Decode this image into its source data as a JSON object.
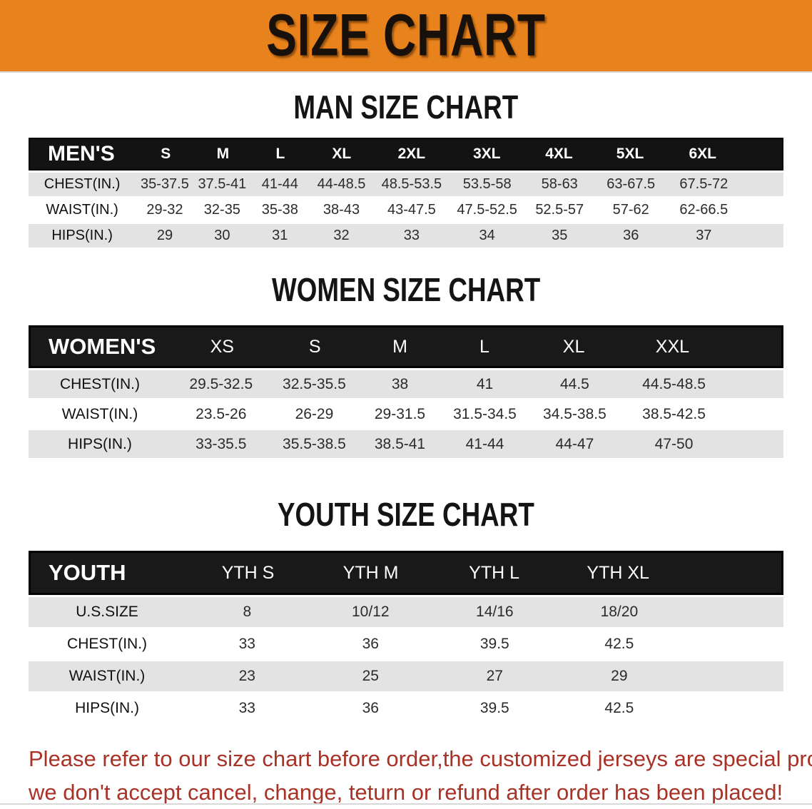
{
  "banner": {
    "title": "SIZE CHART"
  },
  "sections": [
    {
      "heading": "MAN SIZE CHART",
      "group_label": "MEN'S",
      "size_headers": [
        "S",
        "M",
        "L",
        "XL",
        "2XL",
        "3XL",
        "4XL",
        "5XL",
        "6XL"
      ],
      "rows": [
        {
          "label": "CHEST(IN.)",
          "values": [
            "35-37.5",
            "37.5-41",
            "41-44",
            "44-48.5",
            "48.5-53.5",
            "53.5-58",
            "58-63",
            "63-67.5",
            "67.5-72"
          ]
        },
        {
          "label": "WAIST(IN.)",
          "values": [
            "29-32",
            "32-35",
            "35-38",
            "38-43",
            "43-47.5",
            "47.5-52.5",
            "52.5-57",
            "57-62",
            "62-66.5"
          ]
        },
        {
          "label": "HIPS(IN.)",
          "values": [
            "29",
            "30",
            "31",
            "32",
            "33",
            "34",
            "35",
            "36",
            "37"
          ]
        }
      ]
    },
    {
      "heading": "WOMEN SIZE CHART",
      "group_label": "WOMEN'S",
      "size_headers": [
        "XS",
        "S",
        "M",
        "L",
        "XL",
        "XXL"
      ],
      "rows": [
        {
          "label": "CHEST(IN.)",
          "values": [
            "29.5-32.5",
            "32.5-35.5",
            "38",
            "41",
            "44.5",
            "44.5-48.5"
          ]
        },
        {
          "label": "WAIST(IN.)",
          "values": [
            "23.5-26",
            "26-29",
            "29-31.5",
            "31.5-34.5",
            "34.5-38.5",
            "38.5-42.5"
          ]
        },
        {
          "label": "HIPS(IN.)",
          "values": [
            "33-35.5",
            "35.5-38.5",
            "38.5-41",
            "41-44",
            "44-47",
            "47-50"
          ]
        }
      ]
    },
    {
      "heading": "YOUTH SIZE CHART",
      "group_label": "YOUTH",
      "size_headers": [
        "YTH S",
        "YTH M",
        "YTH L",
        "YTH XL"
      ],
      "rows": [
        {
          "label": "U.S.SIZE",
          "values": [
            "8",
            "10/12",
            "14/16",
            "18/20"
          ]
        },
        {
          "label": "CHEST(IN.)",
          "values": [
            "33",
            "36",
            "39.5",
            "42.5"
          ]
        },
        {
          "label": "WAIST(IN.)",
          "values": [
            "23",
            "25",
            "27",
            "29"
          ]
        },
        {
          "label": "HIPS(IN.)",
          "values": [
            "33",
            "36",
            "39.5",
            "42.5"
          ]
        }
      ]
    }
  ],
  "footer": {
    "lines": [
      "Please refer to our size chart before order,the customized jerseys are special products,",
      "we don't accept cancel, change, teturn or refund after order has been placed!"
    ]
  },
  "colors": {
    "banner_bg": "#E8821C",
    "table_header_bg": "#131313",
    "row_shade": "#E3E3E3",
    "footer_text": "#A93226"
  }
}
